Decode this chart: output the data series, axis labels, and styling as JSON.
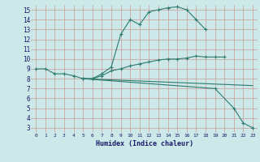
{
  "xlabel": "Humidex (Indice chaleur)",
  "background_color": "#cce8e8",
  "grid_color": "#cc9999",
  "line_color": "#2e7b6e",
  "xlim": [
    -0.5,
    23.5
  ],
  "ylim": [
    2.5,
    15.5
  ],
  "xticks": [
    0,
    1,
    2,
    3,
    4,
    5,
    6,
    7,
    8,
    9,
    10,
    11,
    12,
    13,
    14,
    15,
    16,
    17,
    18,
    19,
    20,
    21,
    22,
    23
  ],
  "yticks": [
    3,
    4,
    5,
    6,
    7,
    8,
    9,
    10,
    11,
    12,
    13,
    14,
    15
  ],
  "line1_x": [
    0,
    1,
    2,
    3,
    4,
    5,
    6,
    7,
    8,
    9,
    10,
    11,
    12,
    13,
    14,
    15,
    16,
    17,
    18
  ],
  "line1_y": [
    9.0,
    9.0,
    8.5,
    8.5,
    8.3,
    8.0,
    8.0,
    8.5,
    9.2,
    12.5,
    14.0,
    13.5,
    14.8,
    15.0,
    15.2,
    15.3,
    15.0,
    14.0,
    13.0
  ],
  "line2_x": [
    5,
    6,
    7,
    8,
    9,
    10,
    11,
    12,
    13,
    14,
    15,
    16,
    17,
    18,
    19,
    20
  ],
  "line2_y": [
    8.0,
    8.0,
    8.3,
    8.8,
    9.0,
    9.3,
    9.5,
    9.7,
    9.9,
    10.0,
    10.0,
    10.1,
    10.3,
    10.2,
    10.2,
    10.2
  ],
  "line3_x": [
    5,
    23
  ],
  "line3_y": [
    8.0,
    7.3
  ],
  "line4_x": [
    5,
    19,
    21,
    22,
    23
  ],
  "line4_y": [
    8.0,
    7.0,
    5.0,
    3.5,
    3.0
  ]
}
